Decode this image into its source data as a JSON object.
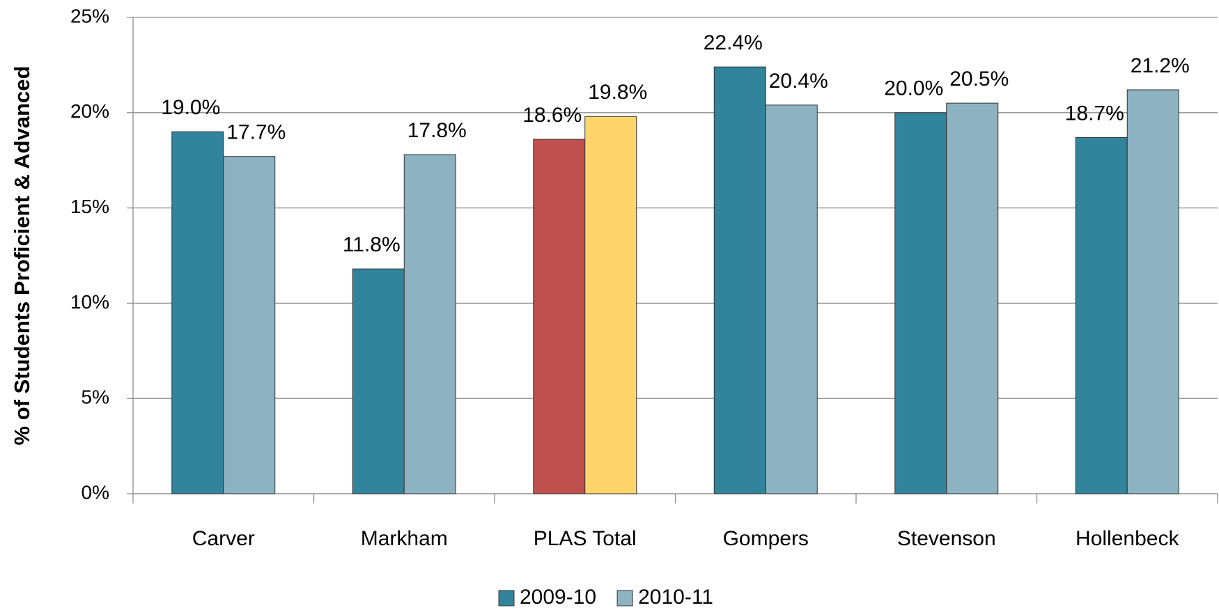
{
  "chart_data": {
    "type": "bar",
    "y_label": "% of Students Proficient & Advanced",
    "categories": [
      "Carver",
      "Markham",
      "PLAS Total",
      "Gompers",
      "Stevenson",
      "Hollenbeck"
    ],
    "series": [
      {
        "name": "2009-10",
        "color": "#31849b",
        "colors": [
          "#31849b",
          "#31849b",
          "#c0504d",
          "#31849b",
          "#31849b",
          "#31849b"
        ],
        "values": [
          19.0,
          11.8,
          18.6,
          22.4,
          20.0,
          18.7
        ],
        "value_labels": [
          "19.0%",
          "11.8%",
          "18.6%",
          "22.4%",
          "20.0%",
          "18.7%"
        ]
      },
      {
        "name": "2010-11",
        "color": "#8db3c2",
        "colors": [
          "#8db3c2",
          "#8db3c2",
          "#ffd56b",
          "#8db3c2",
          "#8db3c2",
          "#8db3c2"
        ],
        "values": [
          17.7,
          17.8,
          19.8,
          20.4,
          20.5,
          21.2
        ],
        "value_labels": [
          "17.7%",
          "17.8%",
          "19.8%",
          "20.4%",
          "20.5%",
          "21.2%"
        ]
      }
    ],
    "ylim": [
      0,
      25
    ],
    "yticks": [
      {
        "value": 0,
        "label": "0%"
      },
      {
        "value": 5,
        "label": "5%"
      },
      {
        "value": 10,
        "label": "10%"
      },
      {
        "value": 15,
        "label": "15%"
      },
      {
        "value": 20,
        "label": "20%"
      },
      {
        "value": 25,
        "label": "25%"
      }
    ],
    "grid": true,
    "legend": "bottom"
  }
}
